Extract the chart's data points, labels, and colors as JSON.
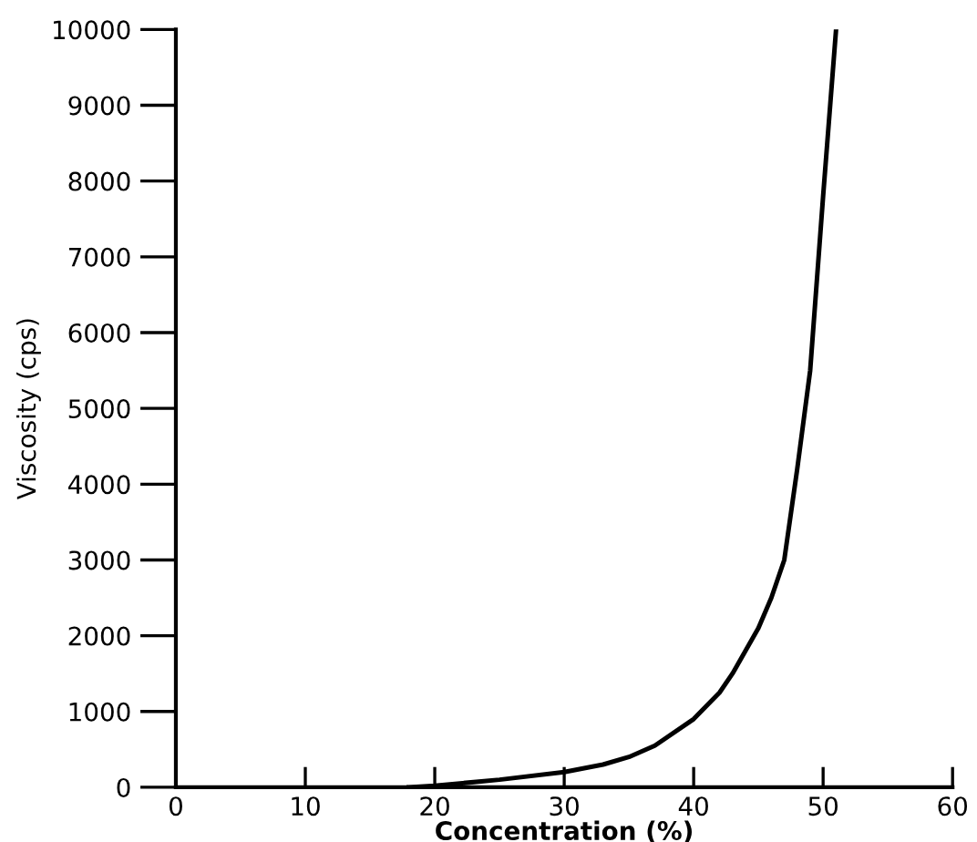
{
  "chart_data": {
    "type": "line",
    "xlabel": "Concentration (%)",
    "ylabel": "Viscosity (cps)",
    "x": [
      18,
      20,
      25,
      30,
      33,
      35,
      37,
      40,
      42,
      43,
      45,
      46,
      47,
      48,
      49,
      50,
      51
    ],
    "values": [
      0,
      20,
      100,
      200,
      300,
      400,
      550,
      900,
      1250,
      1500,
      2100,
      2500,
      3000,
      4200,
      5500,
      7800,
      10000
    ],
    "color": "#000000",
    "marker": "none",
    "line_style": "solid",
    "grid": false,
    "legend": false,
    "xlim": [
      0,
      60
    ],
    "xticks": [
      0,
      10,
      20,
      30,
      40,
      50,
      60
    ],
    "ylim": [
      0,
      10000
    ],
    "yticks": [
      0,
      1000,
      2000,
      3000,
      4000,
      5000,
      6000,
      7000,
      8000,
      9000,
      10000
    ]
  }
}
